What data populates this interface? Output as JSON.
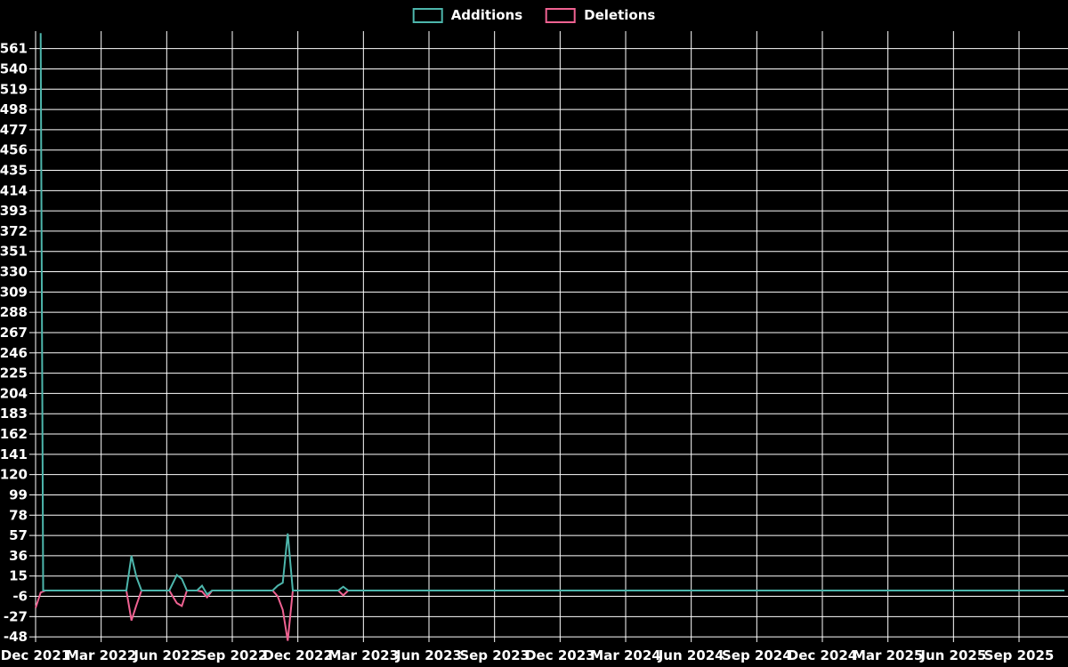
{
  "legend": {
    "items": [
      {
        "label": "Additions",
        "color": "#4db6ac"
      },
      {
        "label": "Deletions",
        "color": "#f06292"
      }
    ]
  },
  "chart_data": {
    "type": "line",
    "title": "",
    "xlabel": "",
    "ylabel": "",
    "background": "#000000",
    "grid": true,
    "grid_color": "#ffffff",
    "axis_color": "#ffffff",
    "legend_position": "top-center",
    "x_labels": [
      "Dec 2021",
      "Mar 2022",
      "Jun 2022",
      "Sep 2022",
      "Dec 2022",
      "Mar 2023",
      "Jun 2023",
      "Sep 2023",
      "Dec 2023",
      "Mar 2024",
      "Jun 2024",
      "Sep 2024",
      "Dec 2024",
      "Mar 2025",
      "Jun 2025",
      "Sep 2025"
    ],
    "x_unit": "weeks since Dec 2021 (quarterly gridlines every 13 weeks)",
    "y_ticks": [
      -48,
      -27,
      -6,
      15,
      36,
      57,
      78,
      99,
      120,
      141,
      162,
      183,
      204,
      225,
      246,
      267,
      288,
      309,
      330,
      351,
      372,
      393,
      414,
      435,
      456,
      477,
      498,
      519,
      540,
      561
    ],
    "ylim": [
      -52,
      579
    ],
    "series": [
      {
        "name": "Additions",
        "color": "#4db6ac",
        "points": [
          [
            1,
            577
          ],
          [
            1.5,
            0
          ],
          [
            18,
            0
          ],
          [
            19,
            36
          ],
          [
            20,
            14
          ],
          [
            21,
            0
          ],
          [
            26.5,
            0
          ],
          [
            28,
            16
          ],
          [
            29,
            12
          ],
          [
            30,
            0
          ],
          [
            32,
            0
          ],
          [
            33,
            5
          ],
          [
            34,
            -4
          ],
          [
            35,
            0
          ],
          [
            47,
            0
          ],
          [
            48,
            5
          ],
          [
            49,
            8
          ],
          [
            50,
            59
          ],
          [
            51,
            0
          ],
          [
            60,
            0
          ],
          [
            61,
            4
          ],
          [
            62,
            0
          ],
          [
            204,
            0
          ]
        ]
      },
      {
        "name": "Deletions",
        "color": "#f06292",
        "points": [
          [
            0,
            -18
          ],
          [
            1,
            -2
          ],
          [
            2,
            0
          ],
          [
            18,
            0
          ],
          [
            19,
            -31
          ],
          [
            20,
            -15
          ],
          [
            21,
            0
          ],
          [
            26.5,
            0
          ],
          [
            28,
            -13
          ],
          [
            29,
            -16
          ],
          [
            30,
            0
          ],
          [
            32,
            0
          ],
          [
            33,
            -1
          ],
          [
            34,
            -7
          ],
          [
            35,
            0
          ],
          [
            47,
            0
          ],
          [
            48,
            -6
          ],
          [
            49,
            -20
          ],
          [
            50,
            -52
          ],
          [
            51,
            0
          ],
          [
            60,
            0
          ],
          [
            61,
            -5
          ],
          [
            62,
            0
          ],
          [
            204,
            0
          ]
        ]
      }
    ]
  }
}
